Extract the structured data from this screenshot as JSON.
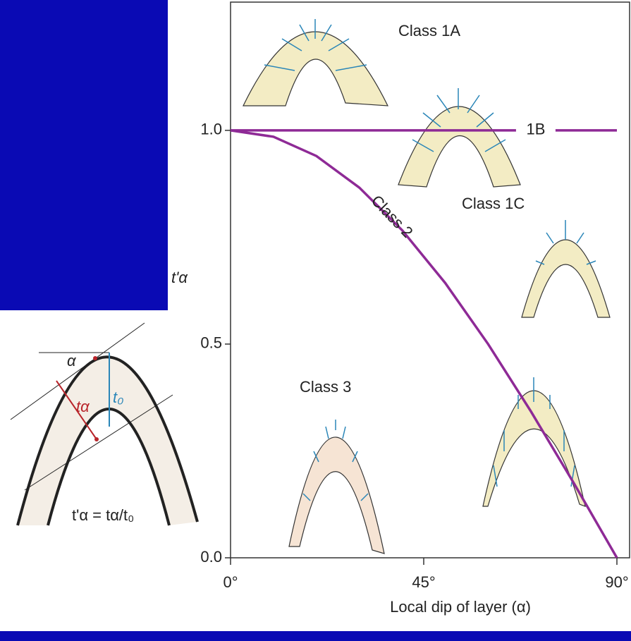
{
  "chart_data": {
    "type": "line",
    "xlabel": "Local dip of layer (α)",
    "ylabel": "t'α",
    "xlim": [
      0,
      90
    ],
    "ylim": [
      0,
      1.3
    ],
    "xticks": [
      {
        "value": 0,
        "label": "0°"
      },
      {
        "value": 45,
        "label": "45°"
      },
      {
        "value": 90,
        "label": "90°"
      }
    ],
    "yticks": [
      {
        "value": 0,
        "label": "0.0"
      },
      {
        "value": 0.5,
        "label": "0.5"
      },
      {
        "value": 1,
        "label": "1.0"
      }
    ],
    "series": [
      {
        "name": "1B",
        "color": "#8e2a96",
        "x": [
          0,
          90
        ],
        "values": [
          1,
          1
        ]
      },
      {
        "name": "Class 2",
        "color": "#8e2a96",
        "x": [
          0,
          10,
          20,
          30,
          40,
          50,
          60,
          70,
          80,
          90
        ],
        "values": [
          1,
          0.985,
          0.94,
          0.866,
          0.766,
          0.643,
          0.5,
          0.342,
          0.174,
          0
        ]
      }
    ],
    "annotations": [
      "Class 1A",
      "Class 1C",
      "Class 3"
    ],
    "diagram_labels": {
      "angle": "α",
      "thickness": "tα",
      "hinge_thickness": "t₀",
      "formula": "t'α = tα/t₀"
    }
  }
}
